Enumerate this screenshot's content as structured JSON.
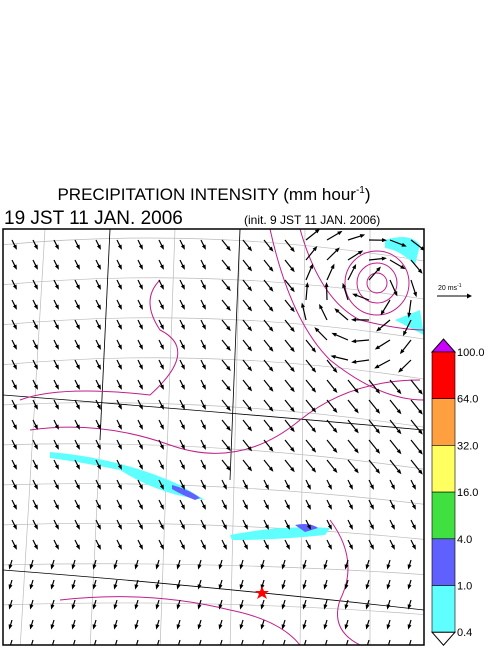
{
  "header": {
    "title": {
      "text": "PRECIPITATION INTENSITY (mm hour",
      "superscript": "-1",
      "close": ")"
    },
    "valid_time": "19 JST 11 JAN. 2006",
    "init_time": "(init. 9 JST 11 JAN. 2006)"
  },
  "wind_scale": {
    "text": "20 ms",
    "superscript": "-1"
  },
  "colorbar": {
    "labels": [
      "100.0",
      "64.0",
      "32.0",
      "16.0",
      "4.0",
      "1.0",
      "0.4"
    ],
    "colors": [
      "#cc00ff",
      "#ff0000",
      "#ffa040",
      "#ffff60",
      "#40e040",
      "#6060ff",
      "#60ffff",
      "#ffffff"
    ]
  }
}
